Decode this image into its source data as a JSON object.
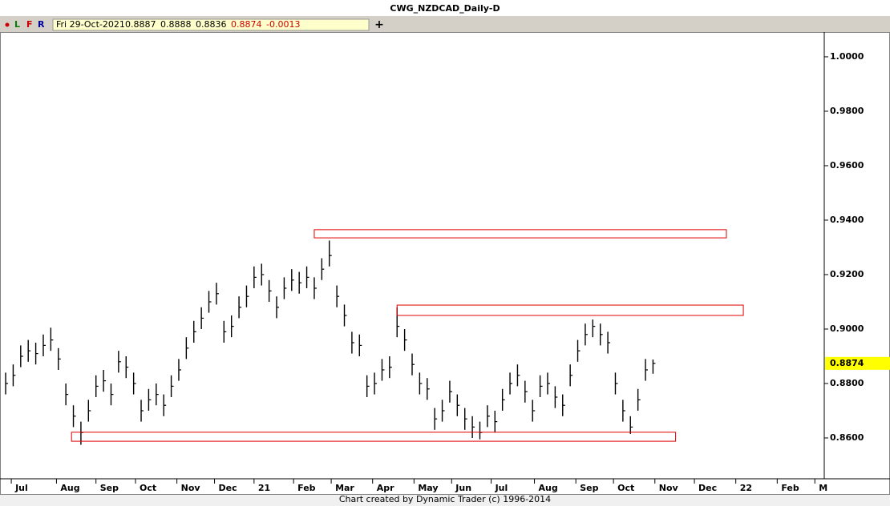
{
  "window_title": "CWG_NZDCAD_Daily-D",
  "toolbar": {
    "buttons": [
      "L",
      "F",
      "R"
    ],
    "date": "Fri 29-Oct-2021",
    "open": 0.8887,
    "high": 0.8888,
    "low": 0.8836,
    "close": 0.8874,
    "change": -0.0013,
    "add": "+"
  },
  "footer": "Chart created by Dynamic Trader  (c)  1996-2014",
  "chart_data": {
    "type": "ohlc",
    "color": "#000000",
    "x": [
      3,
      7,
      11,
      15,
      19,
      23,
      27,
      31,
      35,
      39,
      43,
      47,
      51,
      55,
      59,
      63,
      67,
      71,
      75,
      79,
      83,
      87,
      91,
      95,
      99,
      103,
      107,
      111,
      115,
      119,
      123,
      127,
      131,
      135,
      139,
      143,
      147,
      151,
      155,
      159,
      163,
      167,
      171,
      175,
      179,
      183,
      187,
      191,
      195,
      199,
      203,
      207,
      211,
      215,
      219,
      223,
      227,
      231,
      235,
      239,
      243,
      247,
      251,
      255,
      259,
      263,
      267,
      271,
      275,
      279,
      283,
      287,
      291,
      295,
      299,
      303,
      307,
      311,
      315,
      319,
      323,
      327,
      331,
      335,
      339,
      343,
      347
    ],
    "high": [
      0.884,
      0.887,
      0.894,
      0.896,
      0.895,
      0.898,
      0.9005,
      0.893,
      0.88,
      0.872,
      0.866,
      0.874,
      0.883,
      0.885,
      0.88,
      0.892,
      0.89,
      0.884,
      0.874,
      0.878,
      0.88,
      0.876,
      0.883,
      0.889,
      0.897,
      0.903,
      0.908,
      0.914,
      0.917,
      0.903,
      0.905,
      0.912,
      0.916,
      0.923,
      0.924,
      0.918,
      0.912,
      0.919,
      0.922,
      0.921,
      0.923,
      0.919,
      0.926,
      0.9325,
      0.916,
      0.909,
      0.899,
      0.898,
      0.883,
      0.884,
      0.889,
      0.89,
      0.908,
      0.9,
      0.891,
      0.884,
      0.882,
      0.871,
      0.874,
      0.881,
      0.876,
      0.871,
      0.868,
      0.866,
      0.872,
      0.87,
      0.878,
      0.884,
      0.887,
      0.881,
      0.874,
      0.883,
      0.884,
      0.879,
      0.876,
      0.887,
      0.896,
      0.902,
      0.9035,
      0.902,
      0.899,
      0.884,
      0.874,
      0.868,
      0.878,
      0.889,
      0.8888
    ],
    "low": [
      0.876,
      0.879,
      0.886,
      0.888,
      0.887,
      0.89,
      0.892,
      0.885,
      0.872,
      0.864,
      0.8575,
      0.866,
      0.875,
      0.877,
      0.872,
      0.884,
      0.882,
      0.876,
      0.866,
      0.87,
      0.872,
      0.868,
      0.875,
      0.881,
      0.889,
      0.895,
      0.9,
      0.906,
      0.909,
      0.895,
      0.897,
      0.904,
      0.908,
      0.915,
      0.916,
      0.91,
      0.904,
      0.911,
      0.914,
      0.913,
      0.915,
      0.911,
      0.918,
      0.923,
      0.908,
      0.901,
      0.891,
      0.89,
      0.875,
      0.876,
      0.881,
      0.882,
      0.897,
      0.892,
      0.883,
      0.876,
      0.874,
      0.863,
      0.866,
      0.873,
      0.868,
      0.863,
      0.86,
      0.8595,
      0.864,
      0.862,
      0.87,
      0.876,
      0.879,
      0.873,
      0.866,
      0.875,
      0.876,
      0.871,
      0.868,
      0.879,
      0.888,
      0.894,
      0.897,
      0.894,
      0.891,
      0.876,
      0.866,
      0.8615,
      0.87,
      0.881,
      0.8836
    ],
    "close": [
      0.88,
      0.883,
      0.89,
      0.892,
      0.891,
      0.894,
      0.896,
      0.889,
      0.876,
      0.868,
      0.862,
      0.87,
      0.879,
      0.881,
      0.876,
      0.888,
      0.886,
      0.88,
      0.87,
      0.874,
      0.876,
      0.872,
      0.879,
      0.885,
      0.893,
      0.899,
      0.904,
      0.91,
      0.913,
      0.899,
      0.901,
      0.908,
      0.912,
      0.919,
      0.92,
      0.914,
      0.908,
      0.915,
      0.918,
      0.917,
      0.919,
      0.915,
      0.922,
      0.927,
      0.912,
      0.905,
      0.895,
      0.894,
      0.879,
      0.88,
      0.885,
      0.886,
      0.901,
      0.896,
      0.887,
      0.88,
      0.878,
      0.867,
      0.87,
      0.877,
      0.872,
      0.867,
      0.864,
      0.862,
      0.868,
      0.866,
      0.874,
      0.88,
      0.883,
      0.877,
      0.87,
      0.879,
      0.88,
      0.875,
      0.872,
      0.883,
      0.892,
      0.898,
      0.901,
      0.898,
      0.895,
      0.88,
      0.87,
      0.864,
      0.874,
      0.885,
      0.8874
    ],
    "zones": [
      {
        "x": [
          167,
          386
        ],
        "y": [
          0.9335,
          0.9365
        ],
        "color": "#e00000"
      },
      {
        "x": [
          211,
          395
        ],
        "y": [
          0.905,
          0.9088
        ],
        "color": "#e00000"
      },
      {
        "x": [
          38,
          359
        ],
        "y": [
          0.8588,
          0.8621
        ],
        "color": "#e00000"
      }
    ],
    "price_marker": {
      "value": 0.8874,
      "label": "0.8874",
      "color": "#ffff00"
    },
    "xlim": [
      0,
      438
    ],
    "xticks": [
      {
        "value": 6,
        "label": "Jul"
      },
      {
        "value": 30,
        "label": "Aug"
      },
      {
        "value": 51,
        "label": "Sep"
      },
      {
        "value": 72,
        "label": "Oct"
      },
      {
        "value": 94,
        "label": "Nov"
      },
      {
        "value": 114,
        "label": "Dec"
      },
      {
        "value": 135,
        "label": "21"
      },
      {
        "value": 156,
        "label": "Feb"
      },
      {
        "value": 176,
        "label": "Mar"
      },
      {
        "value": 198,
        "label": "Apr"
      },
      {
        "value": 220,
        "label": "May"
      },
      {
        "value": 240,
        "label": "Jun"
      },
      {
        "value": 261,
        "label": "Jul"
      },
      {
        "value": 284,
        "label": "Aug"
      },
      {
        "value": 306,
        "label": "Sep"
      },
      {
        "value": 326,
        "label": "Oct"
      },
      {
        "value": 348,
        "label": "Nov"
      },
      {
        "value": 369,
        "label": "Dec"
      },
      {
        "value": 391,
        "label": "22"
      },
      {
        "value": 413,
        "label": "Feb"
      },
      {
        "value": 433,
        "label": "M"
      }
    ],
    "ylim": [
      0.8453,
      1.0091
    ],
    "yticks": [
      {
        "value": 0.86,
        "label": "0.8600"
      },
      {
        "value": 0.88,
        "label": "0.8800"
      },
      {
        "value": 0.9,
        "label": "0.9000"
      },
      {
        "value": 0.92,
        "label": "0.9200"
      },
      {
        "value": 0.94,
        "label": "0.9400"
      },
      {
        "value": 0.96,
        "label": "0.9600"
      },
      {
        "value": 0.98,
        "label": "0.9800"
      },
      {
        "value": 1.0,
        "label": "1.0000"
      }
    ]
  }
}
